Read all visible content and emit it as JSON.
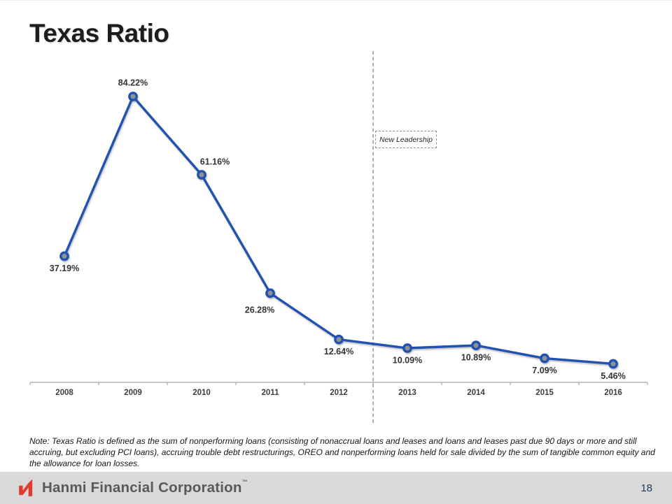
{
  "title": "Texas Ratio",
  "annotation": {
    "label": "New Leadership"
  },
  "chart_data": {
    "type": "line",
    "title": "Texas Ratio",
    "categories": [
      "2008",
      "2009",
      "2010",
      "2011",
      "2012",
      "2013",
      "2014",
      "2015",
      "2016"
    ],
    "values": [
      37.19,
      84.22,
      61.16,
      26.28,
      12.64,
      10.09,
      10.89,
      7.09,
      5.46
    ],
    "labels": [
      "37.19%",
      "84.22%",
      "61.16%",
      "26.28%",
      "12.64%",
      "10.09%",
      "10.89%",
      "7.09%",
      "5.46%"
    ],
    "label_positions": [
      "below",
      "above",
      "above-right",
      "below-left",
      "below",
      "below",
      "below",
      "below",
      "below"
    ],
    "xlabel": "",
    "ylabel": "",
    "ylim": [
      0,
      97
    ],
    "grid": false,
    "legend": "none",
    "divider_after_category": "2012",
    "divider_label": "New Leadership",
    "line_color": "#2052b2",
    "marker_fill": "#8f9396",
    "axis_color": "#a8a8a8",
    "divider_color": "#9d9d9d"
  },
  "note": "Note: Texas Ratio is defined as the sum of nonperforming loans (consisting of nonaccrual loans and leases and loans and leases past due 90 days or more and still accruing, but excluding PCI loans), accruing trouble debt restructurings, OREO and nonperforming loans held for sale divided by the sum of tangible common equity and the allowance for loan losses.",
  "footer": {
    "company": "Hanmi Financial Corporation",
    "trademark": "™",
    "page_number": "18",
    "bar_color": "#d9d9d9",
    "logo_color": "#e23a2e",
    "text_color": "#58595b",
    "page_number_color": "#1f3864"
  }
}
